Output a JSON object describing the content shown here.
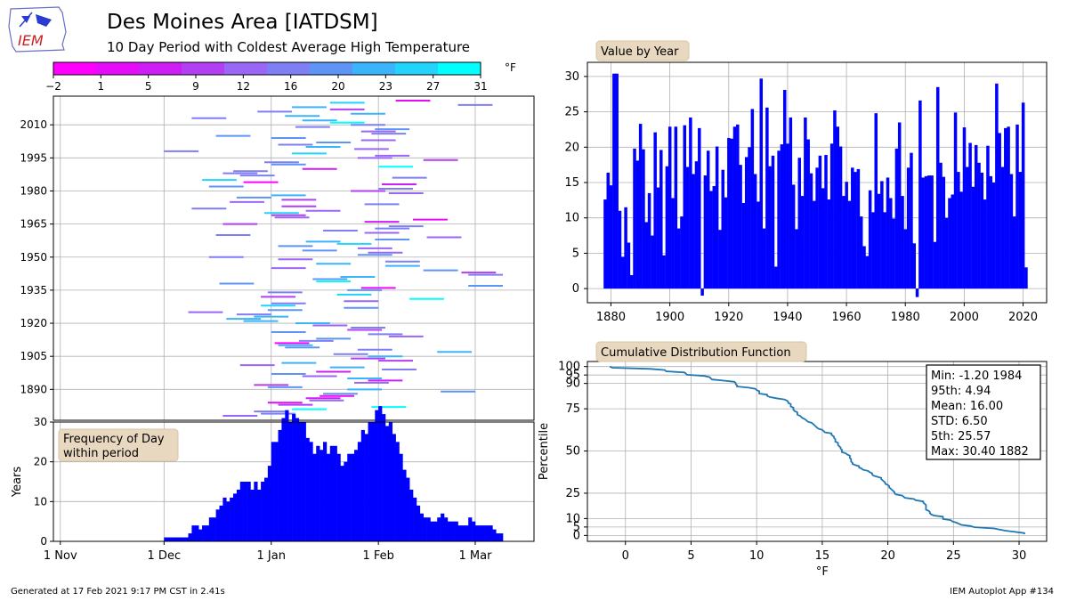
{
  "header": {
    "logo_text": "IEM",
    "title": "Des Moines Area [IATDSM]",
    "subtitle": "10 Day Period with Coldest Average High Temperature"
  },
  "footer": {
    "left": "Generated at 17 Feb 2021 9:17 PM CST in 2.41s",
    "right": "IEM Autoplot App #134"
  },
  "chart_data": [
    {
      "id": "colorbar",
      "type": "colorbar",
      "unit": "°F",
      "ticks": [
        "−2",
        "1",
        "5",
        "9",
        "12",
        "16",
        "20",
        "23",
        "27",
        "31"
      ],
      "colors": [
        "#ff00ff",
        "#e60cfa",
        "#cc1ef5",
        "#b33ff2",
        "#9966f5",
        "#7f7ff5",
        "#5f94f7",
        "#3ab4fa",
        "#22d4fc",
        "#00ffff"
      ],
      "range": [
        -2,
        31
      ]
    },
    {
      "id": "period-map",
      "type": "scatter",
      "xlabel": "",
      "ylabel": "",
      "ylim": [
        1876,
        2023
      ],
      "y_ticks": [
        1890,
        1905,
        1920,
        1935,
        1950,
        1965,
        1980,
        1995,
        2010
      ],
      "x_ticks": [
        "1 Nov",
        "1 Dec",
        "1 Jan",
        "1 Feb",
        "1 Mar"
      ],
      "grid": true,
      "period_days": 10,
      "periods": [
        {
          "year": 1878,
          "start": "Dec 18",
          "value": 12.6
        },
        {
          "year": 1879,
          "start": "Dec 29",
          "value": 16.4
        },
        {
          "year": 1880,
          "start": "Dec 27",
          "value": 14.6
        },
        {
          "year": 1881,
          "start": "Jan 7",
          "value": 30.4
        },
        {
          "year": 1882,
          "start": "Jan 30",
          "value": 30.4
        },
        {
          "year": 1883,
          "start": "Jan 3",
          "value": 11.0
        },
        {
          "year": 1884,
          "start": "Dec 31",
          "value": 4.5
        },
        {
          "year": 1885,
          "start": "Jan 12",
          "value": 11.5
        },
        {
          "year": 1886,
          "start": "Jan 11",
          "value": 6.5
        },
        {
          "year": 1887,
          "start": "Jan 15",
          "value": 1.9
        },
        {
          "year": 1888,
          "start": "Jan 16",
          "value": 19.8
        },
        {
          "year": 1889,
          "start": "Feb 19",
          "value": 18.1
        },
        {
          "year": 1890,
          "start": "Jan 23",
          "value": 23.3
        },
        {
          "year": 1891,
          "start": "Dec 31",
          "value": 19.7
        },
        {
          "year": 1892,
          "start": "Dec 27",
          "value": 9.4
        },
        {
          "year": 1893,
          "start": "Jan 25",
          "value": 13.5
        },
        {
          "year": 1894,
          "start": "Jan 29",
          "value": 7.5
        },
        {
          "year": 1895,
          "start": "Jan 23",
          "value": 22.1
        },
        {
          "year": 1896,
          "start": "Jan 10",
          "value": 14.3
        },
        {
          "year": 1897,
          "start": "Jan 1",
          "value": 19.6
        },
        {
          "year": 1898,
          "start": "Jan 14",
          "value": 4.7
        },
        {
          "year": 1899,
          "start": "Feb 2",
          "value": 17.3
        },
        {
          "year": 1900,
          "start": "Jan 18",
          "value": 22.9
        },
        {
          "year": 1901,
          "start": "Dec 23",
          "value": 12.8
        },
        {
          "year": 1902,
          "start": "Jan 4",
          "value": 22.9
        },
        {
          "year": 1903,
          "start": "Feb 1",
          "value": 8.5
        },
        {
          "year": 1904,
          "start": "Jan 24",
          "value": 10.2
        },
        {
          "year": 1905,
          "start": "Jan 29",
          "value": 23.1
        },
        {
          "year": 1906,
          "start": "Jan 19",
          "value": 17.2
        },
        {
          "year": 1907,
          "start": "Feb 18",
          "value": 24.2
        },
        {
          "year": 1908,
          "start": "Jan 26",
          "value": 16.2
        },
        {
          "year": 1909,
          "start": "Jan 5",
          "value": 18.0
        },
        {
          "year": 1910,
          "start": "Jan 3",
          "value": 22.7
        },
        {
          "year": 1911,
          "start": "Jan 2",
          "value": -1.0
        },
        {
          "year": 1912,
          "start": "Jan 9",
          "value": 16.0
        },
        {
          "year": 1913,
          "start": "Jan 14",
          "value": 19.5
        },
        {
          "year": 1914,
          "start": "Feb 4",
          "value": 13.8
        },
        {
          "year": 1915,
          "start": "Jan 29",
          "value": 14.5
        },
        {
          "year": 1916,
          "start": "Jan 1",
          "value": 20.1
        },
        {
          "year": 1917,
          "start": "Jan 23",
          "value": 8.3
        },
        {
          "year": 1918,
          "start": "Jan 24",
          "value": 16.8
        },
        {
          "year": 1919,
          "start": "Jan 13",
          "value": 12.9
        },
        {
          "year": 1920,
          "start": "Jan 8",
          "value": 21.3
        },
        {
          "year": 1921,
          "start": "Dec 24",
          "value": 21.2
        },
        {
          "year": 1922,
          "start": "Dec 19",
          "value": 22.9
        },
        {
          "year": 1923,
          "start": "Dec 27",
          "value": 23.2
        },
        {
          "year": 1924,
          "start": "Dec 22",
          "value": 17.5
        },
        {
          "year": 1925,
          "start": "Dec 8",
          "value": 12.1
        },
        {
          "year": 1926,
          "start": "Dec 31",
          "value": 18.6
        },
        {
          "year": 1927,
          "start": "Jan 22",
          "value": 20.0
        },
        {
          "year": 1928,
          "start": "Dec 29",
          "value": 25.4
        },
        {
          "year": 1929,
          "start": "Jan 1",
          "value": 16.2
        },
        {
          "year": 1930,
          "start": "Jan 22",
          "value": 12.3
        },
        {
          "year": 1931,
          "start": "Feb 10",
          "value": 29.7
        },
        {
          "year": 1932,
          "start": "Dec 29",
          "value": 8.5
        },
        {
          "year": 1933,
          "start": "Jan 20",
          "value": 25.6
        },
        {
          "year": 1934,
          "start": "Dec 31",
          "value": 17.3
        },
        {
          "year": 1935,
          "start": "Jan 23",
          "value": 18.8
        },
        {
          "year": 1936,
          "start": "Jan 27",
          "value": 3.1
        },
        {
          "year": 1937,
          "start": "Feb 27",
          "value": 19.5
        },
        {
          "year": 1938,
          "start": "Dec 17",
          "value": 20.4
        },
        {
          "year": 1939,
          "start": "Jan 14",
          "value": 28.1
        },
        {
          "year": 1940,
          "start": "Jan 13",
          "value": 20.5
        },
        {
          "year": 1941,
          "start": "Jan 21",
          "value": 24.2
        },
        {
          "year": 1942,
          "start": "Feb 27",
          "value": 14.7
        },
        {
          "year": 1943,
          "start": "Feb 25",
          "value": 8.4
        },
        {
          "year": 1944,
          "start": "Feb 14",
          "value": 18.5
        },
        {
          "year": 1945,
          "start": "Jan 1",
          "value": 13.1
        },
        {
          "year": 1946,
          "start": "Feb 3",
          "value": 24.2
        },
        {
          "year": 1947,
          "start": "Jan 14",
          "value": 21.1
        },
        {
          "year": 1948,
          "start": "Feb 3",
          "value": 16.3
        },
        {
          "year": 1949,
          "start": "Jan 3",
          "value": 12.4
        },
        {
          "year": 1950,
          "start": "Dec 14",
          "value": 17.1
        },
        {
          "year": 1951,
          "start": "Jan 26",
          "value": 18.8
        },
        {
          "year": 1952,
          "start": "Jan 29",
          "value": 14.2
        },
        {
          "year": 1953,
          "start": "Jan 10",
          "value": 18.9
        },
        {
          "year": 1954,
          "start": "Jan 26",
          "value": 12.6
        },
        {
          "year": 1955,
          "start": "Jan 3",
          "value": 20.5
        },
        {
          "year": 1956,
          "start": "Jan 20",
          "value": 25.2
        },
        {
          "year": 1957,
          "start": "Jan 11",
          "value": 22.9
        },
        {
          "year": 1958,
          "start": "Jan 31",
          "value": 20.1
        },
        {
          "year": 1959,
          "start": "Feb 15",
          "value": 13.1
        },
        {
          "year": 1960,
          "start": "Dec 16",
          "value": 15.1
        },
        {
          "year": 1961,
          "start": "Jan 28",
          "value": 12.4
        },
        {
          "year": 1962,
          "start": "Jan 16",
          "value": 17.1
        },
        {
          "year": 1963,
          "start": "Jan 31",
          "value": 16.5
        },
        {
          "year": 1964,
          "start": "Feb 4",
          "value": 16.9
        },
        {
          "year": 1965,
          "start": "Dec 18",
          "value": 10.2
        },
        {
          "year": 1966,
          "start": "Jan 28",
          "value": 6.0
        },
        {
          "year": 1967,
          "start": "Feb 11",
          "value": 4.6
        },
        {
          "year": 1968,
          "start": "Jan 2",
          "value": 13.9
        },
        {
          "year": 1969,
          "start": "Jan 1",
          "value": 10.8
        },
        {
          "year": 1970,
          "start": "Dec 30",
          "value": 24.8
        },
        {
          "year": 1971,
          "start": "Jan 11",
          "value": 13.4
        },
        {
          "year": 1972,
          "start": "Dec 9",
          "value": 15.2
        },
        {
          "year": 1973,
          "start": "Jan 4",
          "value": 10.8
        },
        {
          "year": 1974,
          "start": "Jan 28",
          "value": 15.7
        },
        {
          "year": 1975,
          "start": "Dec 20",
          "value": 12.8
        },
        {
          "year": 1976,
          "start": "Jan 4",
          "value": 9.9
        },
        {
          "year": 1977,
          "start": "Dec 22",
          "value": 19.8
        },
        {
          "year": 1978,
          "start": "Jan 1",
          "value": 23.5
        },
        {
          "year": 1979,
          "start": "Feb 4",
          "value": 13.1
        },
        {
          "year": 1980,
          "start": "Jan 24",
          "value": 8.4
        },
        {
          "year": 1981,
          "start": "Feb 1",
          "value": 17.1
        },
        {
          "year": 1982,
          "start": "Dec 14",
          "value": 19.2
        },
        {
          "year": 1983,
          "start": "Feb 2",
          "value": 6.4
        },
        {
          "year": 1984,
          "start": "Dec 24",
          "value": -1.2
        },
        {
          "year": 1985,
          "start": "Dec 12",
          "value": 26.6
        },
        {
          "year": 1986,
          "start": "Feb 5",
          "value": 15.7
        },
        {
          "year": 1987,
          "start": "Dec 23",
          "value": 15.9
        },
        {
          "year": 1988,
          "start": "Dec 18",
          "value": 16.0
        },
        {
          "year": 1989,
          "start": "Dec 21",
          "value": 16.0
        },
        {
          "year": 1990,
          "start": "Jan 10",
          "value": 6.6
        },
        {
          "year": 1991,
          "start": "Feb 1",
          "value": 28.5
        },
        {
          "year": 1992,
          "start": "Jan 1",
          "value": 17.8
        },
        {
          "year": 1993,
          "start": "Dec 30",
          "value": 15.8
        },
        {
          "year": 1994,
          "start": "Feb 14",
          "value": 10.0
        },
        {
          "year": 1995,
          "start": "Jan 26",
          "value": 12.8
        },
        {
          "year": 1996,
          "start": "Jan 31",
          "value": 13.3
        },
        {
          "year": 1997,
          "start": "Jan 7",
          "value": 24.9
        },
        {
          "year": 1998,
          "start": "Dec 1",
          "value": 16.5
        },
        {
          "year": 1999,
          "start": "Jan 25",
          "value": 13.7
        },
        {
          "year": 2000,
          "start": "Jan 11",
          "value": 22.8
        },
        {
          "year": 2001,
          "start": "Jan 3",
          "value": 17.2
        },
        {
          "year": 2002,
          "start": "Jan 14",
          "value": 20.6
        },
        {
          "year": 2003,
          "start": "Jan 27",
          "value": 14.4
        },
        {
          "year": 2004,
          "start": "Jan 1",
          "value": 20.3
        },
        {
          "year": 2005,
          "start": "Dec 16",
          "value": 17.8
        },
        {
          "year": 2006,
          "start": "Jan 30",
          "value": 16.4
        },
        {
          "year": 2007,
          "start": "Jan 27",
          "value": 12.6
        },
        {
          "year": 2008,
          "start": "Jan 31",
          "value": 20.2
        },
        {
          "year": 2009,
          "start": "Jan 8",
          "value": 15.9
        },
        {
          "year": 2010,
          "start": "Jan 24",
          "value": 15.0
        },
        {
          "year": 2011,
          "start": "Jan 18",
          "value": 29.0
        },
        {
          "year": 2012,
          "start": "Jan 10",
          "value": 22.0
        },
        {
          "year": 2013,
          "start": "Dec 9",
          "value": 17.2
        },
        {
          "year": 2014,
          "start": "Jan 5",
          "value": 22.7
        },
        {
          "year": 2015,
          "start": "Jan 24",
          "value": 22.9
        },
        {
          "year": 2016,
          "start": "Dec 28",
          "value": 16.2
        },
        {
          "year": 2017,
          "start": "Jan 18",
          "value": 10.2
        },
        {
          "year": 2018,
          "start": "Jan 7",
          "value": 23.2
        },
        {
          "year": 2019,
          "start": "Feb 24",
          "value": 16.5
        },
        {
          "year": 2020,
          "start": "Jan 18",
          "value": 26.3
        },
        {
          "year": 2021,
          "start": "Feb 6",
          "value": 3.0
        }
      ]
    },
    {
      "id": "frequency",
      "type": "bar",
      "label": "Frequency of Day\nwithin period",
      "ylabel": "Years",
      "ylim": [
        0,
        30
      ],
      "y_ticks": [
        0,
        10,
        20,
        30
      ],
      "x_ticks": [
        "1 Nov",
        "1 Dec",
        "1 Jan",
        "1 Feb",
        "1 Mar"
      ],
      "grid": true
    },
    {
      "id": "value-by-year",
      "type": "bar",
      "label": "Value by Year",
      "ylim": [
        -2,
        32
      ],
      "y_ticks": [
        0,
        5,
        10,
        15,
        20,
        25,
        30
      ],
      "x_ticks": [
        1880,
        1900,
        1920,
        1940,
        1960,
        1980,
        2000,
        2020
      ],
      "xlim": [
        1872,
        2028
      ],
      "grid": true,
      "color": "#0000ff"
    },
    {
      "id": "cdf",
      "type": "line",
      "label": "Cumulative Distribution Function",
      "xlabel": "°F",
      "ylabel": "Percentile",
      "xlim": [
        -2.9,
        32.1
      ],
      "ylim": [
        -3.5,
        103
      ],
      "x_ticks": [
        0,
        5,
        10,
        15,
        20,
        25,
        30
      ],
      "y_ticks": [
        0,
        5,
        10,
        25,
        50,
        75,
        90,
        95,
        100
      ],
      "grid": true,
      "color": "#1f77b4",
      "stats_box": [
        "Min: -1.20 1984",
        "95th: 4.94",
        "Mean: 16.00",
        "STD: 6.50",
        "5th: 25.57",
        "Max: 30.40 1882"
      ]
    }
  ]
}
